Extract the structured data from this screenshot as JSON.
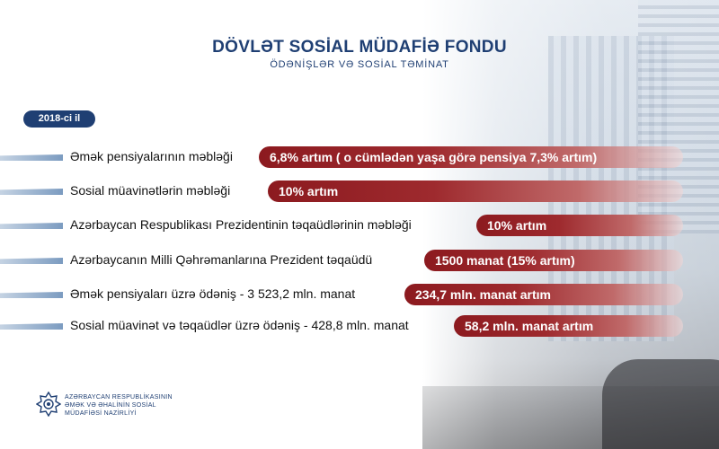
{
  "header": {
    "title": "DÖVLƏT SOSİAL MÜDAFİƏ FONDU",
    "subtitle": "ÖDƏNİŞLƏR VƏ SOSİAL TƏMİNAT"
  },
  "year_badge": "2018-ci il",
  "rows": [
    {
      "label": "Əmək pensiyalarının məbləği",
      "value": "6,8% artım ( o cümlədən yaşa görə pensiya 7,3% artım)"
    },
    {
      "label": "Sosial müavinətlərin məbləği",
      "value": "10%  artım"
    },
    {
      "label": "Azərbaycan Respublikası Prezidentinin təqaüdlərinin məbləği",
      "value": "10%  artım"
    },
    {
      "label": "Azərbaycanın Milli Qəhrəmanlarına Prezident təqaüdü",
      "value": "1500 manat  (15% artım)"
    },
    {
      "label": "Əmək pensiyaları üzrə ödəniş - 3 523,2 mln. manat",
      "value": "234,7 mln. manat artım"
    },
    {
      "label": "Sosial müavinət və təqaüdlər üzrə ödəniş - 428,8 mln. manat",
      "value": "58,2 mln. manat artım"
    }
  ],
  "footer": {
    "logo_icon": "ministry-emblem-icon",
    "line1": "AZƏRBAYCAN RESPUBLİKASININ",
    "line2": "ƏMƏK VƏ ƏHALİNİN SOSİAL",
    "line3": "MÜDAFİƏSİ NAZİRLİYİ"
  },
  "colors": {
    "navy": "#1f3f73",
    "bar_red": "#8c1a1f",
    "accent_blue": "#7b9bc0"
  }
}
